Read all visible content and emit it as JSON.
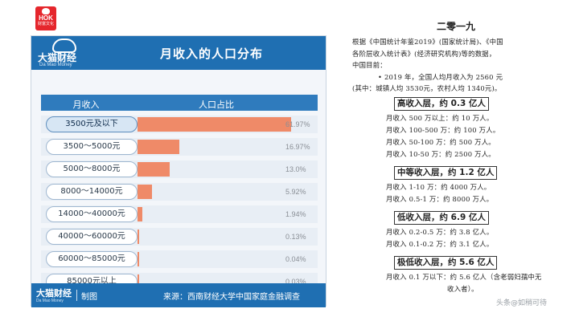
{
  "logo": {
    "text": "HOK",
    "subtext": "财富文化"
  },
  "card": {
    "brand_cn": "大猫财经",
    "brand_en": "Da Mao Money",
    "title": "月收入的人口分布",
    "header_income": "月收入",
    "header_share": "人口占比",
    "footer_brand_cn": "大猫财经",
    "footer_brand_en": "Da Mao Money",
    "footer_made": "制图",
    "footer_source": "来源：西南财经大学中国家庭金融调查",
    "brand_color": "#1f6fb2",
    "bar_color": "#ef8a68"
  },
  "chart_data": {
    "type": "bar",
    "orientation": "horizontal",
    "title": "月收入的人口分布",
    "xlabel": "人口占比",
    "ylabel": "月收入",
    "categories": [
      "3500元及以下",
      "3500～5000元",
      "5000～8000元",
      "8000～14000元",
      "14000～40000元",
      "40000～60000元",
      "60000～85000元",
      "85000元以上"
    ],
    "values": [
      61.97,
      16.97,
      13.0,
      5.92,
      1.94,
      0.13,
      0.04,
      0.03
    ],
    "value_labels": [
      "61.97%",
      "16.97%",
      "13.0%",
      "5.92%",
      "1.94%",
      "0.13%",
      "0.04%",
      "0.03%"
    ],
    "unit": "%",
    "xlim": [
      0,
      65
    ],
    "source": "来源：西南财经大学中国家庭金融调查"
  },
  "right": {
    "title": "二零一九",
    "intro": [
      "根据《中国统计年鉴2019》(国家统计局)、《中国",
      "各阶层收入统计表》(经济研究机构)等的数据，",
      "中国目前：",
      "• 2019 年，全国人均月收入为 2560 元",
      "(其中：城镇人均 3530元，农村人均 1340元)。"
    ],
    "sections": [
      {
        "head": "高收入层，约 0.3 亿人",
        "lines": [
          "月收入 500 万以上：约 10 万人。",
          "月收入 100-500 万：约 100 万人。",
          "月收入 50-100 万：约 500 万人。",
          "月收入 10-50 万：约 2500 万人。"
        ]
      },
      {
        "head": "中等收入层，约 1.2 亿人",
        "lines": [
          "月收入 1-10 万：约 4000 万人。",
          "月收入 0.5-1 万：约 8000 万人。"
        ]
      },
      {
        "head": "低收入层，约 6.9 亿人",
        "lines": [
          "月收入 0.2-0.5 万：约 3.8 亿人。",
          "月收入 0.1-0.2 万：约 3.1 亿人。"
        ]
      },
      {
        "head": "极低收入层，约 5.6 亿人",
        "lines": [
          "月收入 0.1 万以下：约 5.6 亿人（含老弱妇孺中无",
          "收入者）。"
        ]
      }
    ],
    "watermark": "头条@如稍可待"
  }
}
